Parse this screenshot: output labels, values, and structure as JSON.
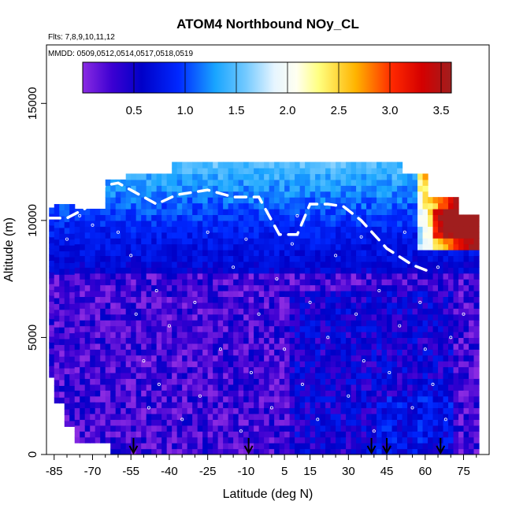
{
  "chart_data": {
    "type": "heatmap",
    "title": "ATOM4 Northbound NOy_CL",
    "flights_label": "Flts: 7,8,9,10,11,12",
    "dates_label": "MMDD: 0509,0512,0514,0517,0518,0519",
    "xlabel": "Latitude (deg N)",
    "ylabel": "Altitude (m)",
    "xlim": [
      -88,
      85
    ],
    "ylim": [
      0,
      17500
    ],
    "x_ticks": [
      -85,
      -70,
      -55,
      -40,
      -25,
      -10,
      5,
      15,
      30,
      45,
      60,
      75
    ],
    "x_tick_labels": [
      "-85",
      "-70",
      "-55",
      "-40",
      "-25",
      "-10",
      "5",
      "15",
      "30",
      "45",
      "60",
      "75"
    ],
    "y_ticks": [
      0,
      5000,
      10000,
      15000
    ],
    "y_tick_labels": [
      "0",
      "5000",
      "10000",
      "15000"
    ],
    "colorbar": {
      "range": [
        0.0,
        3.6
      ],
      "ticks": [
        0.5,
        1.0,
        1.5,
        2.0,
        2.5,
        3.0,
        3.5
      ],
      "tick_labels": [
        "0.5",
        "1.0",
        "1.5",
        "2.0",
        "2.5",
        "3.0",
        "3.5"
      ]
    },
    "profile_latitudes": [
      -54,
      -9,
      39,
      45,
      66
    ],
    "flight_track": [
      [
        -87,
        10100
      ],
      [
        -80,
        10100
      ],
      [
        -73,
        10500
      ],
      [
        -65,
        11500
      ],
      [
        -60,
        11600
      ],
      [
        -45,
        10700
      ],
      [
        -37,
        11100
      ],
      [
        -25,
        11300
      ],
      [
        -15,
        11000
      ],
      [
        -5,
        11000
      ],
      [
        3,
        9400
      ],
      [
        10,
        9400
      ],
      [
        15,
        10700
      ],
      [
        22,
        10700
      ],
      [
        28,
        10600
      ],
      [
        35,
        10000
      ],
      [
        45,
        8800
      ],
      [
        55,
        8100
      ],
      [
        62,
        7800
      ]
    ],
    "sample_points": [
      [
        -55,
        8500
      ],
      [
        -53,
        6000
      ],
      [
        -50,
        4000
      ],
      [
        -48,
        2000
      ],
      [
        -45,
        7000
      ],
      [
        -44,
        3000
      ],
      [
        -40,
        5500
      ],
      [
        -35,
        1500
      ],
      [
        -30,
        6500
      ],
      [
        -28,
        2500
      ],
      [
        -20,
        4500
      ],
      [
        -15,
        8000
      ],
      [
        -12,
        1000
      ],
      [
        -8,
        3500
      ],
      [
        -5,
        6000
      ],
      [
        0,
        2000
      ],
      [
        2,
        7500
      ],
      [
        5,
        4500
      ],
      [
        8,
        9000
      ],
      [
        12,
        3000
      ],
      [
        15,
        6500
      ],
      [
        18,
        1500
      ],
      [
        22,
        5000
      ],
      [
        25,
        8500
      ],
      [
        30,
        2500
      ],
      [
        33,
        6000
      ],
      [
        36,
        4000
      ],
      [
        40,
        1000
      ],
      [
        42,
        7000
      ],
      [
        46,
        3500
      ],
      [
        50,
        5500
      ],
      [
        52,
        9500
      ],
      [
        55,
        2000
      ],
      [
        58,
        6500
      ],
      [
        60,
        4500
      ],
      [
        63,
        3000
      ],
      [
        65,
        8000
      ],
      [
        68,
        1500
      ],
      [
        70,
        5000
      ],
      [
        75,
        6000
      ],
      [
        -60,
        9500
      ],
      [
        -70,
        9800
      ],
      [
        -80,
        9200
      ],
      [
        -75,
        10200
      ],
      [
        -25,
        9500
      ],
      [
        -10,
        9200
      ],
      [
        10,
        10200
      ],
      [
        35,
        9300
      ]
    ]
  }
}
